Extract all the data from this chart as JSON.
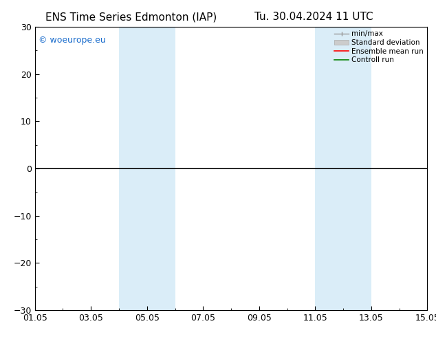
{
  "title_left": "ENS Time Series Edmonton (IAP)",
  "title_right": "Tu. 30.04.2024 11 UTC",
  "watermark": "© woeurope.eu",
  "watermark_color": "#1a6ccc",
  "ylim": [
    -30,
    30
  ],
  "yticks": [
    -30,
    -20,
    -10,
    0,
    10,
    20,
    30
  ],
  "x_start_days": 0,
  "x_end_days": 14,
  "xtick_labels": [
    "01.05",
    "03.05",
    "05.05",
    "07.05",
    "09.05",
    "11.05",
    "13.05",
    "15.05"
  ],
  "xtick_positions": [
    0,
    2,
    4,
    6,
    8,
    10,
    12,
    14
  ],
  "background_color": "#ffffff",
  "plot_bg_color": "#ffffff",
  "shaded_bands": [
    {
      "x_start": 3.0,
      "x_end": 5.0,
      "color": "#daedf8"
    },
    {
      "x_start": 10.0,
      "x_end": 12.0,
      "color": "#daedf8"
    }
  ],
  "hline_y": 0,
  "hline_color": "#000000",
  "legend_items": [
    {
      "label": "min/max",
      "type": "hline_with_ticks",
      "color": "#999999"
    },
    {
      "label": "Standard deviation",
      "type": "fillbetween",
      "color": "#cccccc"
    },
    {
      "label": "Ensemble mean run",
      "type": "line",
      "color": "#ff0000"
    },
    {
      "label": "Controll run",
      "type": "line",
      "color": "#008000"
    }
  ],
  "tick_direction": "in",
  "title_fontsize": 11,
  "label_fontsize": 9,
  "watermark_fontsize": 9,
  "legend_fontsize": 7.5
}
